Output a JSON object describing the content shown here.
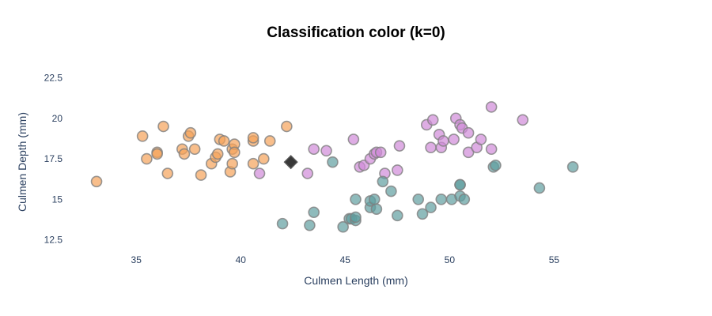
{
  "chart_data": {
    "type": "scatter",
    "title": "Classification color (k=0)",
    "xlabel": "Culmen Length (mm)",
    "ylabel": "Culmen Depth (mm)",
    "xlim": [
      32,
      59
    ],
    "ylim": [
      11.8,
      23.4
    ],
    "x_ticks": [
      35,
      40,
      45,
      50,
      55
    ],
    "x_tick_labels": [
      "35",
      "40",
      "45",
      "50",
      "55"
    ],
    "y_ticks": [
      12.5,
      15,
      17.5,
      20,
      22.5
    ],
    "y_tick_labels": [
      "12.5",
      "15",
      "17.5",
      "20",
      "22.5"
    ],
    "grid": false,
    "legend": "none",
    "series": [
      {
        "color": "#f5a35a",
        "points": [
          [
            33.1,
            16.1
          ],
          [
            35.3,
            18.9
          ],
          [
            35.5,
            17.5
          ],
          [
            36.0,
            17.9
          ],
          [
            36.0,
            17.8
          ],
          [
            36.3,
            19.5
          ],
          [
            36.5,
            16.6
          ],
          [
            37.2,
            18.1
          ],
          [
            37.3,
            17.8
          ],
          [
            37.5,
            18.9
          ],
          [
            37.6,
            19.1
          ],
          [
            37.8,
            18.1
          ],
          [
            38.1,
            16.5
          ],
          [
            38.6,
            17.2
          ],
          [
            38.8,
            17.6
          ],
          [
            38.9,
            17.8
          ],
          [
            39.0,
            18.7
          ],
          [
            39.2,
            18.6
          ],
          [
            39.5,
            16.7
          ],
          [
            39.6,
            17.2
          ],
          [
            39.6,
            18.1
          ],
          [
            39.7,
            18.4
          ],
          [
            39.7,
            17.9
          ],
          [
            40.6,
            18.6
          ],
          [
            40.6,
            18.8
          ],
          [
            40.6,
            17.2
          ],
          [
            41.1,
            17.5
          ],
          [
            41.4,
            18.6
          ],
          [
            42.2,
            19.5
          ]
        ]
      },
      {
        "color": "#d08ad8",
        "points": [
          [
            40.9,
            16.6
          ],
          [
            43.2,
            16.6
          ],
          [
            43.5,
            18.1
          ],
          [
            44.1,
            18.0
          ],
          [
            45.4,
            18.7
          ],
          [
            45.7,
            17.0
          ],
          [
            45.9,
            17.1
          ],
          [
            46.2,
            17.5
          ],
          [
            46.4,
            17.8
          ],
          [
            46.5,
            17.9
          ],
          [
            46.7,
            17.9
          ],
          [
            46.9,
            16.6
          ],
          [
            47.5,
            16.8
          ],
          [
            47.6,
            18.3
          ],
          [
            48.9,
            19.6
          ],
          [
            49.1,
            18.2
          ],
          [
            49.2,
            19.9
          ],
          [
            49.5,
            19.0
          ],
          [
            49.6,
            18.2
          ],
          [
            49.7,
            18.6
          ],
          [
            50.2,
            18.7
          ],
          [
            50.3,
            20.0
          ],
          [
            50.5,
            19.6
          ],
          [
            50.6,
            19.4
          ],
          [
            50.9,
            19.1
          ],
          [
            50.9,
            17.9
          ],
          [
            51.3,
            18.2
          ],
          [
            51.5,
            18.7
          ],
          [
            52.0,
            18.1
          ],
          [
            52.0,
            20.7
          ],
          [
            53.5,
            19.9
          ]
        ]
      },
      {
        "color": "#5f9ea0",
        "points": [
          [
            42.0,
            13.5
          ],
          [
            43.3,
            13.4
          ],
          [
            43.5,
            14.2
          ],
          [
            44.4,
            17.3
          ],
          [
            44.9,
            13.3
          ],
          [
            45.2,
            13.8
          ],
          [
            45.3,
            13.8
          ],
          [
            45.5,
            13.7
          ],
          [
            45.5,
            13.9
          ],
          [
            45.5,
            15.0
          ],
          [
            46.2,
            14.5
          ],
          [
            46.2,
            14.9
          ],
          [
            46.4,
            15.0
          ],
          [
            46.5,
            14.4
          ],
          [
            46.8,
            16.1
          ],
          [
            47.2,
            15.5
          ],
          [
            47.5,
            14.0
          ],
          [
            48.5,
            15.0
          ],
          [
            48.7,
            14.1
          ],
          [
            49.1,
            14.5
          ],
          [
            49.6,
            15.0
          ],
          [
            50.1,
            15.0
          ],
          [
            50.5,
            15.9
          ],
          [
            50.5,
            15.9
          ],
          [
            50.5,
            15.2
          ],
          [
            50.7,
            15.0
          ],
          [
            52.1,
            17.0
          ],
          [
            52.2,
            17.1
          ],
          [
            54.3,
            15.7
          ],
          [
            55.9,
            17.0
          ]
        ]
      },
      {
        "color": "#222222",
        "marker": "diamond",
        "points": [
          [
            42.4,
            17.3
          ]
        ]
      }
    ]
  }
}
